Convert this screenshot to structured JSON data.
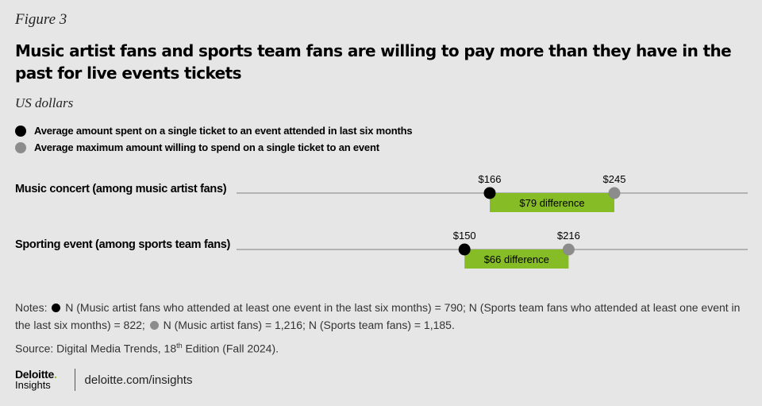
{
  "figure_label": "Figure 3",
  "title": "Music artist fans and sports team fans are willing to pay more than they have in the past for live events tickets",
  "units": "US dollars",
  "legend": [
    {
      "label": "Average amount spent on a single ticket to an event attended in last six months",
      "color": "#000000"
    },
    {
      "label": "Average maximum amount willing to spend on a single ticket to an event",
      "color": "#8c8c8c"
    }
  ],
  "chart_data": {
    "type": "dumbbell",
    "categories": [
      "Music concert (among music artist fans)",
      "Sporting event (among sports team fans)"
    ],
    "series": [
      {
        "name": "Average amount spent on a single ticket to an event attended in last six months",
        "values": [
          166,
          150
        ],
        "labels": [
          "$166",
          "$150"
        ],
        "color": "#000000"
      },
      {
        "name": "Average maximum amount willing to spend on a single ticket to an event",
        "values": [
          245,
          216
        ],
        "labels": [
          "$245",
          "$216"
        ],
        "color": "#8c8c8c"
      }
    ],
    "difference_labels": [
      "$79 difference",
      "$66 difference"
    ],
    "difference_color": "#86bc25",
    "axis_line_color": "#b3b3b3",
    "ylabel": "US dollars"
  },
  "notes": {
    "prefix": "Notes:",
    "part1": "N (Music artist fans who attended at least one event in the last six months) = 790; N (Sports team fans who attended at least one event in the last six months) = 822;",
    "part2": "N (Music artist fans) = 1,216; N (Sports team fans) = 1,185."
  },
  "source": {
    "prefix": "Source: Digital Media Trends, 18",
    "sup": "th",
    "suffix": " Edition (Fall 2024)."
  },
  "footer": {
    "brand": "Deloitte",
    "brand_dot": ".",
    "brand_sub": "Insights",
    "link": "deloitte.com/insights"
  }
}
